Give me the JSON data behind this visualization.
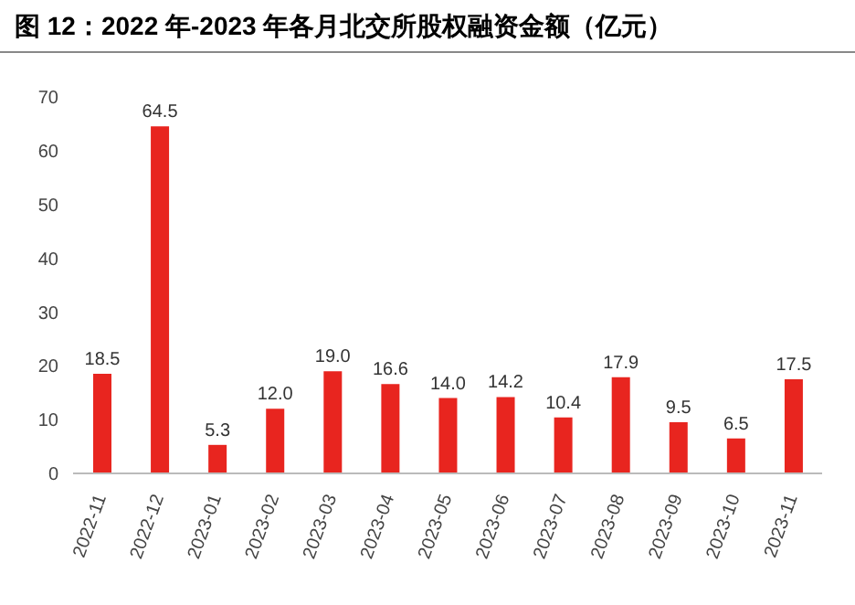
{
  "chart_data": {
    "type": "bar",
    "title": "图 12：2022 年-2023 年各月北交所股权融资金额（亿元）",
    "categories": [
      "2022-11",
      "2022-12",
      "2023-01",
      "2023-02",
      "2023-03",
      "2023-04",
      "2023-05",
      "2023-06",
      "2023-07",
      "2023-08",
      "2023-09",
      "2023-10",
      "2023-11"
    ],
    "values": [
      18.5,
      64.5,
      5.3,
      12.0,
      19.0,
      16.6,
      14.0,
      14.2,
      10.4,
      17.9,
      9.5,
      6.5,
      17.5
    ],
    "value_labels": [
      "18.5",
      "64.5",
      "5.3",
      "12.0",
      "19.0",
      "16.6",
      "14.0",
      "14.2",
      "10.4",
      "17.9",
      "9.5",
      "6.5",
      "17.5"
    ],
    "color": "#e8251f",
    "ylim": [
      0,
      70
    ],
    "yticks": [
      0,
      10,
      20,
      30,
      40,
      50,
      60,
      70
    ],
    "grid": false,
    "legend": false
  }
}
